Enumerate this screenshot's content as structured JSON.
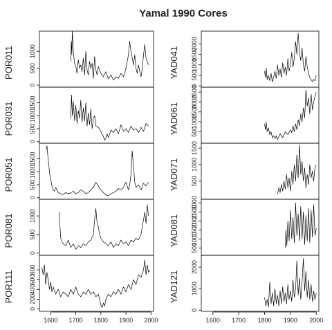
{
  "chart_data": {
    "type": "line",
    "title": "Yamal 1990 Cores",
    "x_ticks": [
      1600,
      1700,
      1800,
      1900,
      2000
    ],
    "xlim": [
      1555,
      2010
    ],
    "panels": [
      {
        "name": "POR011",
        "column": "left",
        "row": 0,
        "ylim": [
          -60,
          1600
        ],
        "y_ticks": [
          0,
          500,
          1000
        ],
        "x": [
          1680,
          1682,
          1684,
          1686,
          1690,
          1695,
          1700,
          1705,
          1710,
          1715,
          1720,
          1725,
          1730,
          1735,
          1740,
          1745,
          1750,
          1755,
          1760,
          1765,
          1770,
          1775,
          1780,
          1785,
          1790,
          1800,
          1810,
          1820,
          1830,
          1840,
          1850,
          1860,
          1870,
          1880,
          1890,
          1900,
          1905,
          1910,
          1915,
          1920,
          1925,
          1930,
          1935,
          1940,
          1945,
          1950,
          1955,
          1960,
          1965,
          1970,
          1975,
          1980,
          1985,
          1990
        ],
        "y": [
          700,
          1300,
          900,
          1600,
          1000,
          650,
          550,
          350,
          750,
          500,
          600,
          400,
          800,
          300,
          1000,
          450,
          300,
          700,
          500,
          650,
          200,
          850,
          450,
          300,
          550,
          350,
          250,
          400,
          180,
          300,
          150,
          250,
          200,
          350,
          250,
          500,
          700,
          900,
          1300,
          1000,
          800,
          600,
          900,
          500,
          350,
          600,
          400,
          250,
          500,
          900,
          1200,
          800,
          700,
          600
        ]
      },
      {
        "name": "POR031",
        "column": "left",
        "row": 1,
        "ylim": [
          -60,
          2100
        ],
        "y_ticks": [
          0,
          500,
          1000,
          1500
        ],
        "x": [
          1680,
          1683,
          1686,
          1690,
          1695,
          1700,
          1705,
          1710,
          1715,
          1720,
          1725,
          1730,
          1735,
          1740,
          1745,
          1750,
          1755,
          1760,
          1765,
          1770,
          1775,
          1780,
          1790,
          1800,
          1810,
          1815,
          1820,
          1825,
          1830,
          1840,
          1850,
          1860,
          1870,
          1880,
          1890,
          1900,
          1910,
          1920,
          1930,
          1940,
          1950,
          1960,
          1970,
          1980,
          1990
        ],
        "y": [
          900,
          1800,
          1000,
          1550,
          800,
          1400,
          700,
          1200,
          900,
          1600,
          750,
          1300,
          800,
          1500,
          600,
          1100,
          650,
          1250,
          500,
          900,
          1000,
          600,
          550,
          400,
          200,
          50,
          150,
          300,
          150,
          450,
          350,
          500,
          300,
          650,
          400,
          500,
          350,
          600,
          450,
          500,
          350,
          550,
          400,
          700,
          600
        ]
      },
      {
        "name": "POR051",
        "column": "left",
        "row": 2,
        "ylim": [
          -60,
          2100
        ],
        "y_ticks": [
          0,
          500,
          1000,
          1500
        ],
        "x": [
          1582,
          1585,
          1588,
          1592,
          1596,
          1600,
          1605,
          1610,
          1615,
          1620,
          1630,
          1640,
          1650,
          1660,
          1670,
          1680,
          1690,
          1700,
          1710,
          1720,
          1730,
          1740,
          1750,
          1760,
          1770,
          1780,
          1790,
          1800,
          1810,
          1820,
          1830,
          1840,
          1850,
          1860,
          1870,
          1880,
          1890,
          1900,
          1910,
          1915,
          1920,
          1925,
          1930,
          1935,
          1940,
          1950,
          1960,
          1970,
          1980,
          1990
        ],
        "y": [
          1850,
          2000,
          1650,
          1300,
          900,
          700,
          450,
          300,
          250,
          400,
          200,
          150,
          120,
          200,
          150,
          180,
          250,
          150,
          200,
          300,
          250,
          150,
          200,
          300,
          400,
          600,
          450,
          300,
          200,
          100,
          80,
          150,
          200,
          250,
          350,
          300,
          400,
          600,
          300,
          500,
          900,
          1800,
          1200,
          600,
          400,
          500,
          300,
          550,
          450,
          600
        ]
      },
      {
        "name": "POR081",
        "column": "left",
        "row": 3,
        "ylim": [
          -60,
          1450
        ],
        "y_ticks": [
          0,
          500,
          1000
        ],
        "x": [
          1633,
          1636,
          1640,
          1645,
          1650,
          1660,
          1670,
          1680,
          1690,
          1700,
          1710,
          1720,
          1730,
          1740,
          1750,
          1760,
          1770,
          1775,
          1780,
          1785,
          1790,
          1795,
          1800,
          1810,
          1820,
          1830,
          1840,
          1850,
          1860,
          1870,
          1880,
          1890,
          1900,
          1910,
          1920,
          1930,
          1940,
          1950,
          1960,
          1965,
          1970,
          1975,
          1980,
          1985,
          1990
        ],
        "y": [
          1100,
          800,
          400,
          300,
          250,
          200,
          350,
          150,
          250,
          100,
          200,
          150,
          250,
          200,
          300,
          350,
          500,
          900,
          1200,
          800,
          700,
          500,
          400,
          300,
          250,
          200,
          300,
          150,
          250,
          200,
          350,
          250,
          300,
          200,
          350,
          300,
          400,
          350,
          500,
          700,
          900,
          1100,
          800,
          1300,
          1000
        ]
      },
      {
        "name": "POR111",
        "column": "left",
        "row": 4,
        "ylim": [
          -50,
          1100
        ],
        "y_ticks": [
          0,
          200,
          400,
          600,
          800
        ],
        "x": [
          1565,
          1570,
          1575,
          1580,
          1585,
          1590,
          1595,
          1600,
          1605,
          1610,
          1620,
          1630,
          1640,
          1650,
          1660,
          1670,
          1680,
          1690,
          1700,
          1710,
          1720,
          1730,
          1740,
          1750,
          1760,
          1770,
          1780,
          1790,
          1795,
          1800,
          1805,
          1810,
          1815,
          1820,
          1830,
          1840,
          1850,
          1860,
          1870,
          1880,
          1890,
          1900,
          1910,
          1920,
          1930,
          1940,
          1950,
          1960,
          1970,
          1975,
          1980,
          1985,
          1990,
          1995
        ],
        "y": [
          850,
          700,
          900,
          500,
          750,
          600,
          400,
          550,
          350,
          450,
          300,
          400,
          250,
          350,
          300,
          250,
          400,
          300,
          450,
          300,
          250,
          350,
          300,
          400,
          300,
          350,
          250,
          300,
          200,
          80,
          30,
          120,
          60,
          200,
          300,
          250,
          350,
          300,
          400,
          300,
          450,
          350,
          500,
          400,
          600,
          500,
          700,
          650,
          800,
          1000,
          700,
          900,
          750,
          800
        ]
      },
      {
        "name": "YAD041",
        "column": "right",
        "row": 0,
        "ylim": [
          -60,
          2600
        ],
        "y_ticks": [
          0,
          500,
          1000,
          1500,
          2000
        ],
        "x": [
          1800,
          1803,
          1806,
          1810,
          1815,
          1820,
          1825,
          1830,
          1835,
          1840,
          1845,
          1850,
          1855,
          1860,
          1865,
          1870,
          1875,
          1880,
          1885,
          1890,
          1895,
          1900,
          1905,
          1910,
          1915,
          1920,
          1925,
          1930,
          1935,
          1940,
          1945,
          1950,
          1955,
          1960,
          1965,
          1970,
          1975,
          1980,
          1985,
          1990,
          1995,
          2000
        ],
        "y": [
          700,
          400,
          850,
          300,
          500,
          250,
          600,
          200,
          400,
          700,
          350,
          1000,
          500,
          800,
          400,
          1100,
          600,
          900,
          500,
          1300,
          700,
          1000,
          1600,
          900,
          1300,
          2100,
          1500,
          2500,
          1600,
          1200,
          1800,
          1000,
          700,
          1400,
          900,
          600,
          400,
          300,
          200,
          300,
          250,
          500
        ]
      },
      {
        "name": "YAD061",
        "column": "right",
        "row": 1,
        "ylim": [
          -80,
          2750
        ],
        "y_ticks": [
          500,
          1000,
          1500,
          2000,
          2500
        ],
        "x": [
          1800,
          1803,
          1806,
          1810,
          1815,
          1820,
          1825,
          1830,
          1835,
          1840,
          1845,
          1850,
          1855,
          1860,
          1870,
          1880,
          1890,
          1900,
          1905,
          1910,
          1915,
          1920,
          1925,
          1930,
          1935,
          1940,
          1945,
          1950,
          1955,
          1960,
          1965,
          1970,
          1975,
          1980,
          1985,
          1990,
          1995,
          2000
        ],
        "y": [
          900,
          600,
          1000,
          500,
          700,
          350,
          500,
          200,
          300,
          150,
          300,
          100,
          250,
          400,
          200,
          500,
          350,
          600,
          450,
          800,
          500,
          900,
          600,
          1100,
          800,
          1400,
          1000,
          1700,
          1200,
          2600,
          1800,
          2200,
          1400,
          2400,
          1600,
          2000,
          2300,
          2500
        ]
      },
      {
        "name": "YAD071",
        "column": "right",
        "row": 2,
        "ylim": [
          -50,
          1650
        ],
        "y_ticks": [
          500,
          1000,
          1500
        ],
        "x": [
          1850,
          1855,
          1860,
          1865,
          1870,
          1875,
          1880,
          1885,
          1890,
          1895,
          1900,
          1905,
          1910,
          1915,
          1920,
          1925,
          1930,
          1935,
          1940,
          1945,
          1950,
          1955,
          1960,
          1965,
          1970,
          1975,
          1980,
          1985,
          1990,
          1995,
          2000
        ],
        "y": [
          100,
          300,
          150,
          400,
          200,
          500,
          250,
          700,
          300,
          600,
          200,
          800,
          400,
          1000,
          500,
          1300,
          600,
          1600,
          700,
          1100,
          500,
          900,
          300,
          700,
          400,
          1000,
          600,
          800,
          500,
          900,
          1000
        ]
      },
      {
        "name": "YAD081",
        "column": "right",
        "row": 3,
        "ylim": [
          100,
          3200
        ],
        "y_ticks": [
          500,
          1000,
          1500,
          2000,
          2500,
          3000
        ],
        "x": [
          1880,
          1883,
          1886,
          1890,
          1895,
          1900,
          1905,
          1910,
          1915,
          1920,
          1925,
          1930,
          1935,
          1940,
          1945,
          1950,
          1955,
          1960,
          1965,
          1970,
          1975,
          1980,
          1985,
          1990,
          1995,
          2000
        ],
        "y": [
          500,
          1500,
          600,
          2000,
          900,
          2600,
          1000,
          2200,
          800,
          3000,
          1200,
          2400,
          900,
          2800,
          1000,
          2500,
          700,
          2300,
          900,
          2700,
          800,
          2600,
          1100,
          2900,
          1200,
          1600
        ]
      },
      {
        "name": "YAD121",
        "column": "right",
        "row": 4,
        "ylim": [
          -50,
          2550
        ],
        "y_ticks": [
          0,
          1000,
          2000
        ],
        "x": [
          1800,
          1805,
          1810,
          1815,
          1820,
          1825,
          1830,
          1835,
          1840,
          1845,
          1850,
          1855,
          1860,
          1865,
          1870,
          1875,
          1880,
          1885,
          1890,
          1895,
          1900,
          1905,
          1910,
          1915,
          1920,
          1925,
          1930,
          1935,
          1940,
          1945,
          1950,
          1955,
          1960,
          1965,
          1970,
          1975,
          1980,
          1985,
          1990,
          1995,
          2000
        ],
        "y": [
          600,
          200,
          500,
          150,
          1300,
          300,
          800,
          200,
          1000,
          300,
          700,
          200,
          900,
          300,
          1100,
          400,
          800,
          300,
          1200,
          500,
          900,
          400,
          1400,
          600,
          1000,
          2300,
          700,
          1500,
          500,
          1300,
          2400,
          900,
          1800,
          600,
          1400,
          500,
          1200,
          400,
          900,
          500,
          800
        ]
      }
    ]
  }
}
